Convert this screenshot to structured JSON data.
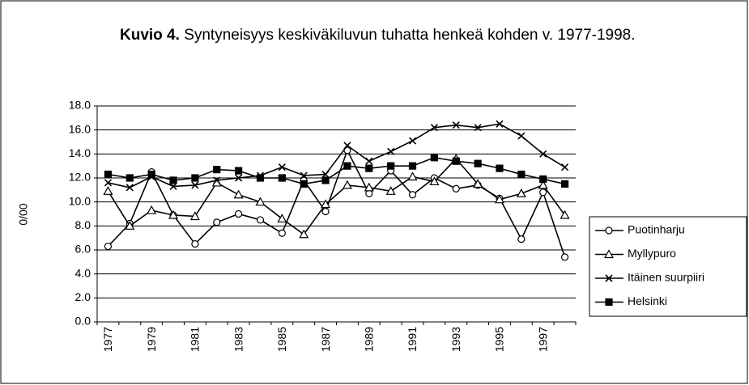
{
  "chart_data": {
    "type": "line",
    "title_prefix": "Kuvio 4.",
    "title": "Syntyneisyys keskiväkiluvun tuhatta henkeä kohden v. 1977-1998.",
    "y_label": "0/00",
    "categories": [
      "1977",
      null,
      "1979",
      null,
      "1981",
      null,
      "1983",
      null,
      "1985",
      null,
      "1987",
      null,
      "1989",
      null,
      "1991",
      null,
      "1993",
      null,
      "1995",
      null,
      "1997",
      null
    ],
    "ylim": [
      0,
      18
    ],
    "yticks": [
      {
        "value": 0,
        "label": "0.0"
      },
      {
        "value": 2,
        "label": "2.0"
      },
      {
        "value": 4,
        "label": "4.0"
      },
      {
        "value": 6,
        "label": "6.0"
      },
      {
        "value": 8,
        "label": "8.0"
      },
      {
        "value": 10,
        "label": "10.0"
      },
      {
        "value": 12,
        "label": "12.0"
      },
      {
        "value": 14,
        "label": "14.0"
      },
      {
        "value": 16,
        "label": "16.0"
      },
      {
        "value": 18,
        "label": "18.0"
      }
    ],
    "grid": true,
    "legend": "right",
    "series": [
      {
        "name": "Puotinharju",
        "color": "#000000",
        "marker": "circle",
        "values": [
          6.3,
          8.2,
          12.5,
          8.9,
          6.5,
          8.3,
          9.0,
          8.5,
          7.4,
          11.8,
          9.2,
          14.3,
          10.7,
          12.6,
          10.6,
          12.0,
          11.1,
          11.4,
          10.3,
          6.9,
          10.8,
          5.4
        ]
      },
      {
        "name": "Myllypuro",
        "color": "#000000",
        "marker": "triangle",
        "values": [
          10.9,
          8.0,
          9.3,
          8.9,
          8.8,
          11.6,
          10.6,
          10.0,
          8.6,
          7.3,
          9.8,
          11.4,
          11.2,
          10.9,
          12.1,
          11.7,
          13.6,
          11.5,
          10.2,
          10.7,
          11.4,
          8.9
        ]
      },
      {
        "name": "Itäinen suurpiiri",
        "color": "#000000",
        "marker": "x",
        "values": [
          11.6,
          11.2,
          12.1,
          11.3,
          11.4,
          11.8,
          12.0,
          12.2,
          12.9,
          12.2,
          12.3,
          14.7,
          13.4,
          14.2,
          15.1,
          16.2,
          16.4,
          16.2,
          16.5,
          15.5,
          14.0,
          12.9
        ]
      },
      {
        "name": "Helsinki",
        "color": "#000000",
        "marker": "square",
        "values": [
          12.3,
          12.0,
          12.3,
          11.8,
          12.0,
          12.7,
          12.6,
          12.0,
          12.0,
          11.5,
          11.8,
          13.0,
          12.8,
          13.0,
          13.0,
          13.7,
          13.4,
          13.2,
          12.8,
          12.3,
          11.9,
          11.5
        ]
      }
    ]
  }
}
